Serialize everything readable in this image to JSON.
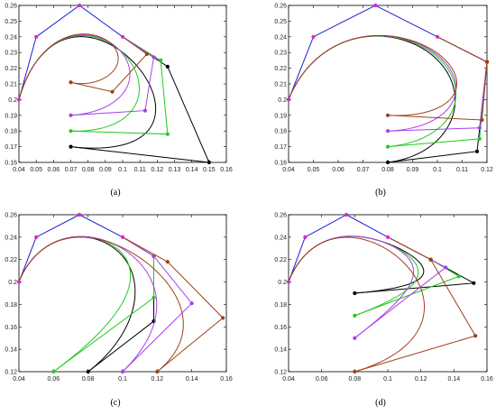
{
  "chart_data": [
    {
      "type": "line",
      "panel_label": "(a)",
      "xlim": [
        0.04,
        0.16
      ],
      "ylim": [
        0.16,
        0.26
      ],
      "xticks": [
        "0.04",
        "0.05",
        "0.06",
        "0.07",
        "0.08",
        "0.09",
        "0.1",
        "0.11",
        "0.12",
        "0.13",
        "0.14",
        "0.15",
        "0.16"
      ],
      "yticks": [
        "0.16",
        "0.17",
        "0.18",
        "0.19",
        "0.2",
        "0.21",
        "0.22",
        "0.23",
        "0.24",
        "0.25",
        "0.26"
      ],
      "grid": false,
      "shared_polygon": {
        "color": "#1c1cd6",
        "points": [
          [
            0.04,
            0.2
          ],
          [
            0.05,
            0.24
          ],
          [
            0.075,
            0.26
          ],
          [
            0.1,
            0.24
          ]
        ]
      },
      "series": [
        {
          "color": "#000000",
          "polygon": [
            [
              0.1,
              0.24
            ],
            [
              0.126,
              0.221
            ],
            [
              0.15,
              0.16
            ],
            [
              0.07,
              0.17
            ]
          ]
        },
        {
          "color": "#22c922",
          "polygon": [
            [
              0.1,
              0.24
            ],
            [
              0.122,
              0.225
            ],
            [
              0.126,
              0.178
            ],
            [
              0.07,
              0.18
            ]
          ]
        },
        {
          "color": "#a83ee8",
          "polygon": [
            [
              0.1,
              0.24
            ],
            [
              0.118,
              0.227
            ],
            [
              0.113,
              0.193
            ],
            [
              0.07,
              0.19
            ]
          ]
        },
        {
          "color": "#a0401a",
          "polygon": [
            [
              0.1,
              0.24
            ],
            [
              0.114,
              0.229
            ],
            [
              0.094,
              0.205
            ],
            [
              0.07,
              0.211
            ]
          ]
        }
      ]
    },
    {
      "type": "line",
      "panel_label": "(b)",
      "xlim": [
        0.04,
        0.12
      ],
      "ylim": [
        0.16,
        0.26
      ],
      "xticks": [
        "0.04",
        "0.05",
        "0.06",
        "0.07",
        "0.08",
        "0.09",
        "0.1",
        "0.11",
        "0.12"
      ],
      "yticks": [
        "0.16",
        "0.17",
        "0.18",
        "0.19",
        "0.2",
        "0.21",
        "0.22",
        "0.23",
        "0.24",
        "0.25",
        "0.26"
      ],
      "grid": false,
      "shared_polygon": {
        "color": "#1c1cd6",
        "points": [
          [
            0.04,
            0.2
          ],
          [
            0.05,
            0.24
          ],
          [
            0.075,
            0.26
          ],
          [
            0.1,
            0.24
          ]
        ]
      },
      "series": [
        {
          "color": "#000000",
          "polygon": [
            [
              0.1,
              0.24
            ],
            [
              0.12,
              0.224
            ],
            [
              0.116,
              0.167
            ],
            [
              0.08,
              0.16
            ]
          ]
        },
        {
          "color": "#22c922",
          "polygon": [
            [
              0.1,
              0.24
            ],
            [
              0.12,
              0.224
            ],
            [
              0.117,
              0.175
            ],
            [
              0.08,
              0.17
            ]
          ]
        },
        {
          "color": "#a83ee8",
          "polygon": [
            [
              0.1,
              0.24
            ],
            [
              0.12,
              0.224
            ],
            [
              0.117,
              0.182
            ],
            [
              0.08,
              0.18
            ]
          ]
        },
        {
          "color": "#a0401a",
          "polygon": [
            [
              0.1,
              0.24
            ],
            [
              0.12,
              0.224
            ],
            [
              0.118,
              0.187
            ],
            [
              0.08,
              0.19
            ]
          ]
        }
      ]
    },
    {
      "type": "line",
      "panel_label": "(c)",
      "xlim": [
        0.04,
        0.16
      ],
      "ylim": [
        0.12,
        0.26
      ],
      "xticks": [
        "0.04",
        "0.06",
        "0.08",
        "0.1",
        "0.12",
        "0.14",
        "0.16"
      ],
      "yticks": [
        "0.12",
        "0.14",
        "0.16",
        "0.18",
        "0.2",
        "0.22",
        "0.24",
        "0.26"
      ],
      "grid": false,
      "shared_polygon": {
        "color": "#1c1cd6",
        "points": [
          [
            0.04,
            0.2
          ],
          [
            0.05,
            0.24
          ],
          [
            0.075,
            0.26
          ],
          [
            0.1,
            0.24
          ]
        ]
      },
      "series": [
        {
          "color": "#000000",
          "polygon": [
            [
              0.1,
              0.24
            ],
            [
              0.118,
              0.223
            ],
            [
              0.118,
              0.165
            ],
            [
              0.08,
              0.12
            ]
          ]
        },
        {
          "color": "#22c922",
          "polygon": [
            [
              0.1,
              0.24
            ],
            [
              0.118,
              0.223
            ],
            [
              0.118,
              0.186
            ],
            [
              0.06,
              0.12
            ]
          ]
        },
        {
          "color": "#a83ee8",
          "polygon": [
            [
              0.1,
              0.24
            ],
            [
              0.118,
              0.223
            ],
            [
              0.14,
              0.181
            ],
            [
              0.1,
              0.12
            ]
          ]
        },
        {
          "color": "#a0401a",
          "polygon": [
            [
              0.1,
              0.24
            ],
            [
              0.126,
              0.218
            ],
            [
              0.158,
              0.168
            ],
            [
              0.12,
              0.12
            ]
          ]
        }
      ]
    },
    {
      "type": "line",
      "panel_label": "(d)",
      "xlim": [
        0.04,
        0.16
      ],
      "ylim": [
        0.12,
        0.26
      ],
      "xticks": [
        "0.04",
        "0.06",
        "0.08",
        "0.1",
        "0.12",
        "0.14",
        "0.16"
      ],
      "yticks": [
        "0.12",
        "0.14",
        "0.16",
        "0.18",
        "0.2",
        "0.22",
        "0.24",
        "0.26"
      ],
      "grid": false,
      "shared_polygon": {
        "color": "#1c1cd6",
        "points": [
          [
            0.04,
            0.2
          ],
          [
            0.05,
            0.24
          ],
          [
            0.075,
            0.26
          ],
          [
            0.1,
            0.24
          ]
        ]
      },
      "series": [
        {
          "color": "#000000",
          "polygon": [
            [
              0.1,
              0.24
            ],
            [
              0.126,
              0.22
            ],
            [
              0.152,
              0.199
            ],
            [
              0.08,
              0.19
            ]
          ]
        },
        {
          "color": "#22c922",
          "polygon": [
            [
              0.1,
              0.24
            ],
            [
              0.126,
              0.22
            ],
            [
              0.143,
              0.205
            ],
            [
              0.08,
              0.17
            ]
          ]
        },
        {
          "color": "#a83ee8",
          "polygon": [
            [
              0.1,
              0.24
            ],
            [
              0.126,
              0.22
            ],
            [
              0.135,
              0.213
            ],
            [
              0.08,
              0.15
            ]
          ]
        },
        {
          "color": "#a0401a",
          "polygon": [
            [
              0.1,
              0.24
            ],
            [
              0.126,
              0.22
            ],
            [
              0.153,
              0.152
            ],
            [
              0.08,
              0.12
            ]
          ]
        }
      ]
    }
  ]
}
